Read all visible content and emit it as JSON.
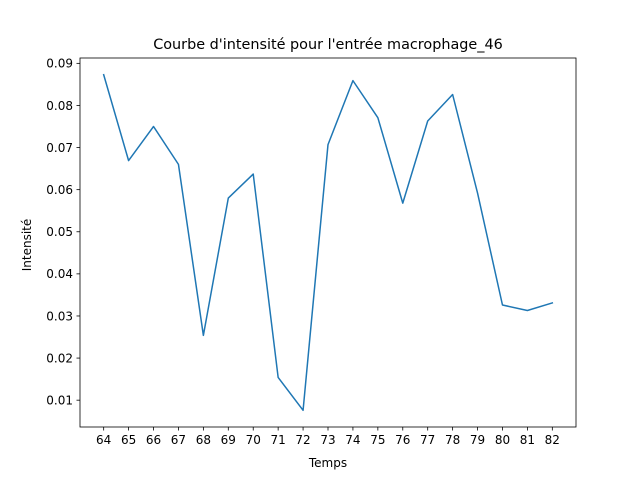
{
  "chart_data": {
    "type": "line",
    "title": "Courbe d'intensité pour l'entrée macrophage_46",
    "xlabel": "Temps",
    "ylabel": "Intensité",
    "grid": false,
    "legend": "none",
    "color": "#1f77b4",
    "xlim": [
      63.05,
      82.95
    ],
    "ylim": [
      0.00363,
      0.09127
    ],
    "x_ticks": [
      64,
      65,
      66,
      67,
      68,
      69,
      70,
      71,
      72,
      73,
      74,
      75,
      76,
      77,
      78,
      79,
      80,
      81,
      82
    ],
    "y_ticks": [
      0.01,
      0.02,
      0.03,
      0.04,
      0.05,
      0.06,
      0.07,
      0.08,
      0.09
    ],
    "y_tick_labels": [
      "0.01",
      "0.02",
      "0.03",
      "0.04",
      "0.05",
      "0.06",
      "0.07",
      "0.08",
      "0.09"
    ],
    "x": [
      64,
      65,
      66,
      67,
      68,
      69,
      70,
      71,
      72,
      73,
      74,
      75,
      76,
      77,
      78,
      79,
      80,
      81,
      82
    ],
    "y": [
      0.0873,
      0.0669,
      0.075,
      0.066,
      0.0254,
      0.058,
      0.0637,
      0.0154,
      0.0076,
      0.0707,
      0.0859,
      0.0771,
      0.0568,
      0.0763,
      0.0826,
      0.0592,
      0.0326,
      0.0313,
      0.0331
    ]
  }
}
